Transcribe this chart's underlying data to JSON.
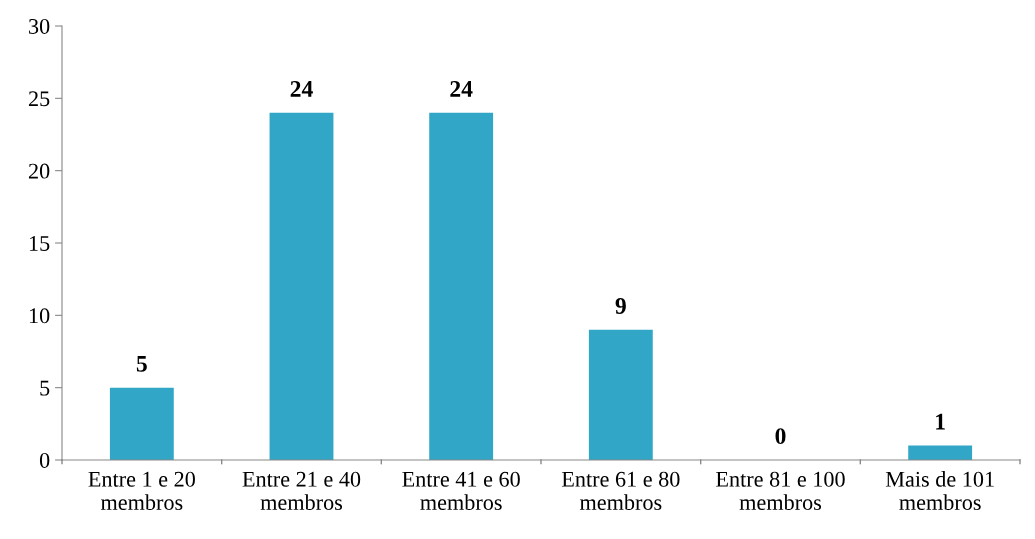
{
  "chart_data": {
    "type": "bar",
    "categories": [
      "Entre 1 e 20\nmembros",
      "Entre 21 e 40\nmembros",
      "Entre 41 e 60\nmembros",
      "Entre 61 e 80\nmembros",
      "Entre 81 e 100\nmembros",
      "Mais de 101\nmembros"
    ],
    "values": [
      5,
      24,
      24,
      9,
      0,
      1
    ],
    "color": "#31a6c7",
    "ylim": [
      0,
      30
    ],
    "yticks": [
      0,
      5,
      10,
      15,
      20,
      25,
      30
    ],
    "grid": false,
    "data_labels": true
  }
}
